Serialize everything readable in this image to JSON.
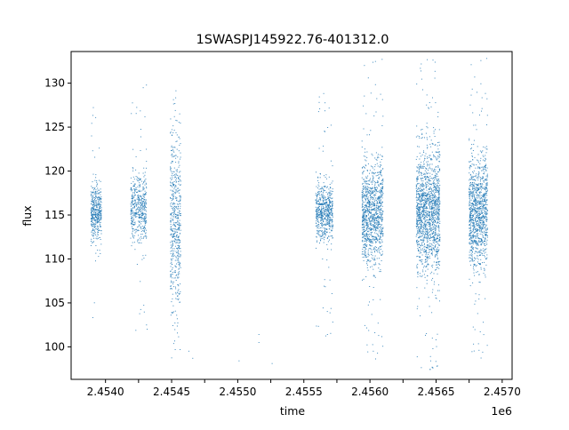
{
  "chart_data": {
    "type": "scatter",
    "title": "1SWASPJ145922.76-401312.0",
    "xlabel": "time",
    "ylabel": "flux",
    "x_offset_label": "1e6",
    "xlim": [
      2453730,
      2457065
    ],
    "ylim": [
      96.3,
      133.6
    ],
    "x_ticks": [
      2453990,
      2454240,
      2454490,
      2454740,
      2454990,
      2455240,
      2455490,
      2455740,
      2455990,
      2456240,
      2456490,
      2456740,
      2456990
    ],
    "x_tick_labels": [
      "2.4540",
      "",
      "2.4545",
      "",
      "2.4550",
      "",
      "2.4555",
      "",
      "2.4560",
      "",
      "2.4565",
      "",
      "2.4570"
    ],
    "x_ticks_display": [
      "2.4540",
      "2.4545",
      "2.4550",
      "2.4555",
      "2.4560",
      "2.4565",
      "2.4570"
    ],
    "y_ticks": [
      100,
      105,
      110,
      115,
      120,
      125,
      130
    ],
    "grid": false,
    "legend": "none",
    "marker_color": "#1f77b4",
    "series": [
      {
        "seasons": [
          {
            "start": 2453880,
            "end": 2453960,
            "center": 115.2,
            "spread": 1.6,
            "outlier_spread": 8.0,
            "density": 420
          },
          {
            "start": 2454180,
            "end": 2454300,
            "center": 115.8,
            "spread": 1.9,
            "outlier_spread": 9.0,
            "density": 480
          },
          {
            "start": 2454480,
            "end": 2454560,
            "center": 114.0,
            "spread": 5.2,
            "outlier_spread": 9.0,
            "density": 540
          },
          {
            "start": 2455580,
            "end": 2455710,
            "center": 115.3,
            "spread": 1.6,
            "outlier_spread": 9.0,
            "density": 620
          },
          {
            "start": 2455930,
            "end": 2456090,
            "center": 115.2,
            "spread": 2.7,
            "outlier_spread": 11.0,
            "density": 1100
          },
          {
            "start": 2456340,
            "end": 2456520,
            "center": 115.4,
            "spread": 3.4,
            "outlier_spread": 11.5,
            "density": 1500
          },
          {
            "start": 2456740,
            "end": 2456880,
            "center": 115.3,
            "spread": 3.0,
            "outlier_spread": 11.0,
            "density": 1100
          }
        ],
        "sparse_points": [
          {
            "x": 2454300,
            "y": 102.5
          },
          {
            "x": 2454305,
            "y": 102.0
          },
          {
            "x": 2454620,
            "y": 99.5
          },
          {
            "x": 2454650,
            "y": 98.7
          },
          {
            "x": 2455000,
            "y": 98.4
          },
          {
            "x": 2455150,
            "y": 101.4
          },
          {
            "x": 2455150,
            "y": 100.5
          },
          {
            "x": 2455250,
            "y": 98.1
          }
        ]
      }
    ]
  }
}
